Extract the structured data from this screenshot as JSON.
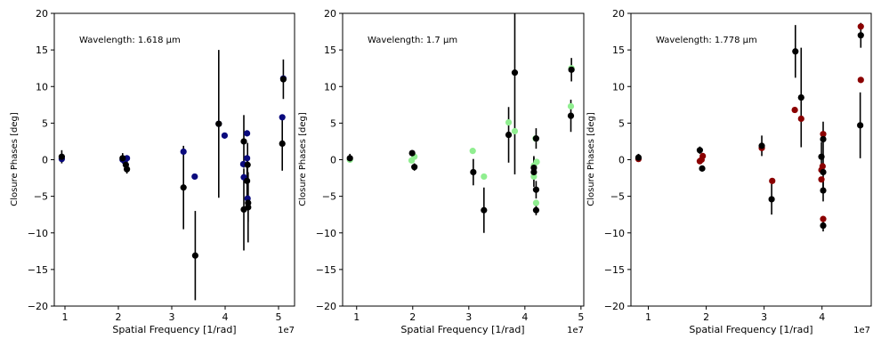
{
  "chart_data": [
    {
      "type": "scatter",
      "annotation": "Wavelength: 1.618 μm",
      "xlabel": "Spatial Frequency [1/rad]",
      "ylabel": "Closure Phases [deg]",
      "x_offset_label": "1e7",
      "xlim": [
        0.8,
        5.3
      ],
      "ylim": [
        -20,
        20
      ],
      "xticks": [
        1,
        2,
        3,
        4,
        5
      ],
      "yticks": [
        -20,
        -15,
        -10,
        -5,
        0,
        5,
        10,
        15,
        20
      ],
      "grid": false,
      "series": [
        {
          "color": "#000000",
          "points": [
            {
              "x": 0.94,
              "y": 0.4,
              "err": 0.9
            },
            {
              "x": 2.08,
              "y": 0.2,
              "err": 0.7
            },
            {
              "x": 2.14,
              "y": -0.7,
              "err": 0.5
            },
            {
              "x": 2.16,
              "y": -1.3,
              "err": 0.6
            },
            {
              "x": 3.22,
              "y": -3.8,
              "err": 5.7
            },
            {
              "x": 3.44,
              "y": -13.1,
              "err": 6.1
            },
            {
              "x": 3.88,
              "y": 4.9,
              "err": 10.1
            },
            {
              "x": 4.35,
              "y": 2.5,
              "err": 3.6
            },
            {
              "x": 4.35,
              "y": -6.8,
              "err": 5.6
            },
            {
              "x": 4.41,
              "y": -2.9,
              "err": 2.8
            },
            {
              "x": 4.43,
              "y": -5.9,
              "err": 2.6
            },
            {
              "x": 4.43,
              "y": -6.5,
              "err": 4.8
            },
            {
              "x": 4.42,
              "y": -0.7,
              "err": 3.0
            },
            {
              "x": 5.07,
              "y": 2.2,
              "err": 3.7
            },
            {
              "x": 5.09,
              "y": 11.0,
              "err": 2.7
            }
          ]
        },
        {
          "color": "#0a0a7d",
          "points": [
            {
              "x": 0.94,
              "y": 0.1
            },
            {
              "x": 2.08,
              "y": 0.0
            },
            {
              "x": 2.12,
              "y": -0.2
            },
            {
              "x": 2.16,
              "y": 0.2
            },
            {
              "x": 3.22,
              "y": 1.1
            },
            {
              "x": 3.43,
              "y": -2.3
            },
            {
              "x": 3.88,
              "y": 4.9
            },
            {
              "x": 3.99,
              "y": 3.3
            },
            {
              "x": 4.34,
              "y": -0.6
            },
            {
              "x": 4.35,
              "y": -2.4
            },
            {
              "x": 4.41,
              "y": 0.2
            },
            {
              "x": 4.41,
              "y": 3.6
            },
            {
              "x": 4.42,
              "y": -5.3
            },
            {
              "x": 5.07,
              "y": 5.8
            },
            {
              "x": 5.09,
              "y": 11.1
            }
          ]
        }
      ]
    },
    {
      "type": "scatter",
      "annotation": "Wavelength: 1.7 μm",
      "xlabel": "Spatial Frequency [1/rad]",
      "ylabel": "Closure Phases [deg]",
      "x_offset_label": "1e7",
      "xlim": [
        0.75,
        5.05
      ],
      "ylim": [
        -20,
        20
      ],
      "xticks": [
        1,
        2,
        3,
        4,
        5
      ],
      "yticks": [
        -20,
        -15,
        -10,
        -5,
        0,
        5,
        10,
        15,
        20
      ],
      "grid": false,
      "series": [
        {
          "color": "#000000",
          "points": [
            {
              "x": 0.88,
              "y": 0.2,
              "err": 0.6
            },
            {
              "x": 1.99,
              "y": 0.9,
              "err": 0.4
            },
            {
              "x": 2.03,
              "y": -1.0,
              "err": 0.5
            },
            {
              "x": 3.08,
              "y": -1.7,
              "err": 1.8
            },
            {
              "x": 3.27,
              "y": -6.9,
              "err": 3.1
            },
            {
              "x": 3.71,
              "y": 3.4,
              "err": 3.8
            },
            {
              "x": 3.82,
              "y": 11.9,
              "err": 13.9
            },
            {
              "x": 4.16,
              "y": -1.1,
              "err": 1.6
            },
            {
              "x": 4.16,
              "y": -1.7,
              "err": 2.0
            },
            {
              "x": 4.2,
              "y": -4.1,
              "err": 1.2
            },
            {
              "x": 4.2,
              "y": -6.9,
              "err": 0.7
            },
            {
              "x": 4.2,
              "y": 2.9,
              "err": 1.4
            },
            {
              "x": 4.82,
              "y": 6.0,
              "err": 2.2
            },
            {
              "x": 4.83,
              "y": 12.3,
              "err": 1.6
            }
          ]
        },
        {
          "color": "#90ee90",
          "points": [
            {
              "x": 0.88,
              "y": 0.0
            },
            {
              "x": 1.98,
              "y": -0.1
            },
            {
              "x": 2.03,
              "y": 0.4
            },
            {
              "x": 3.07,
              "y": 1.2
            },
            {
              "x": 3.27,
              "y": -2.3
            },
            {
              "x": 3.71,
              "y": 5.1
            },
            {
              "x": 3.82,
              "y": 3.9
            },
            {
              "x": 4.16,
              "y": -2.3
            },
            {
              "x": 4.16,
              "y": -0.8
            },
            {
              "x": 4.19,
              "y": 2.9
            },
            {
              "x": 4.21,
              "y": -0.3
            },
            {
              "x": 4.2,
              "y": -5.9
            },
            {
              "x": 4.82,
              "y": 7.3
            },
            {
              "x": 4.83,
              "y": 12.5
            }
          ]
        }
      ]
    },
    {
      "type": "scatter",
      "annotation": "Wavelength: 1.778 μm",
      "xlabel": "Spatial Frequency [1/rad]",
      "ylabel": "Closure Phases [deg]",
      "x_offset_label": "1e7",
      "xlim": [
        0.7,
        4.85
      ],
      "ylim": [
        -20,
        20
      ],
      "xticks": [
        1,
        2,
        3,
        4
      ],
      "yticks": [
        -20,
        -15,
        -10,
        -5,
        0,
        5,
        10,
        15,
        20
      ],
      "grid": false,
      "series": [
        {
          "color": "#000000",
          "points": [
            {
              "x": 0.83,
              "y": 0.3,
              "err": 0.5
            },
            {
              "x": 1.89,
              "y": 1.3,
              "err": 0.5
            },
            {
              "x": 1.93,
              "y": -1.2,
              "err": 0.4
            },
            {
              "x": 2.96,
              "y": 1.9,
              "err": 1.4
            },
            {
              "x": 3.13,
              "y": -5.4,
              "err": 2.1
            },
            {
              "x": 3.54,
              "y": 14.8,
              "err": 3.6
            },
            {
              "x": 3.64,
              "y": 8.5,
              "err": 6.8
            },
            {
              "x": 3.99,
              "y": 0.4,
              "err": 2.0
            },
            {
              "x": 4.02,
              "y": -1.7,
              "err": 2.3
            },
            {
              "x": 4.02,
              "y": 2.8,
              "err": 2.4
            },
            {
              "x": 4.02,
              "y": -4.2,
              "err": 1.5
            },
            {
              "x": 4.02,
              "y": -9.0,
              "err": 0.8
            },
            {
              "x": 4.66,
              "y": 4.7,
              "err": 4.5
            },
            {
              "x": 4.67,
              "y": 17.0,
              "err": 1.7
            }
          ]
        },
        {
          "color": "#8b0000",
          "points": [
            {
              "x": 0.83,
              "y": 0.1
            },
            {
              "x": 1.89,
              "y": -0.2
            },
            {
              "x": 1.92,
              "y": 0.0
            },
            {
              "x": 1.94,
              "y": 0.5
            },
            {
              "x": 2.96,
              "y": 1.6
            },
            {
              "x": 3.14,
              "y": -2.9
            },
            {
              "x": 3.53,
              "y": 6.8
            },
            {
              "x": 3.64,
              "y": 5.6
            },
            {
              "x": 3.99,
              "y": -1.4
            },
            {
              "x": 3.99,
              "y": -2.7
            },
            {
              "x": 4.01,
              "y": -0.9
            },
            {
              "x": 4.02,
              "y": 3.5
            },
            {
              "x": 4.02,
              "y": -8.1
            },
            {
              "x": 4.67,
              "y": 10.9
            },
            {
              "x": 4.67,
              "y": 18.2
            }
          ]
        }
      ]
    }
  ]
}
